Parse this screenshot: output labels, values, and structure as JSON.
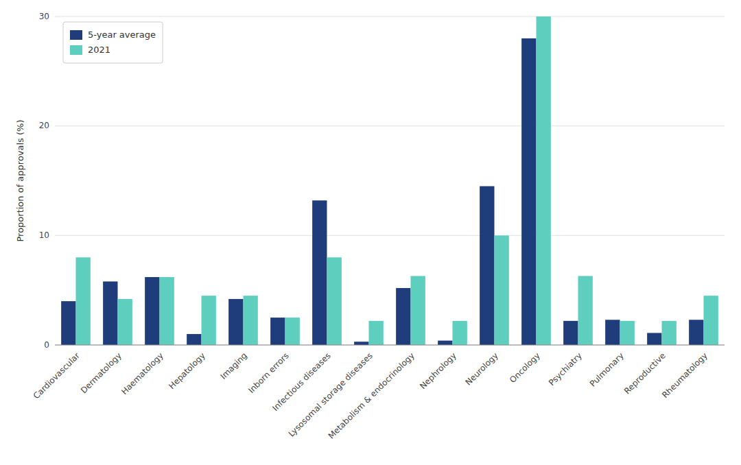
{
  "chart_data": {
    "type": "bar",
    "categories": [
      "Cardiovascular",
      "Dermatology",
      "Haematology",
      "Hepatology",
      "Imaging",
      "Inborn errors",
      "Infectious diseases",
      "Lysosomal storage diseases",
      "Metabolism & endocrinology",
      "Nephrology",
      "Neurology",
      "Oncology",
      "Psychiatry",
      "Pulmonary",
      "Reproductive",
      "Rheumatology"
    ],
    "series": [
      {
        "name": "5-year average",
        "color": "#1f3d7a",
        "values": [
          4.0,
          5.8,
          6.2,
          1.0,
          4.2,
          2.5,
          13.2,
          0.3,
          5.2,
          0.4,
          14.5,
          28.0,
          2.2,
          2.3,
          1.1,
          2.3
        ]
      },
      {
        "name": "2021",
        "color": "#5ecfbf",
        "values": [
          8.0,
          4.2,
          6.2,
          4.5,
          4.5,
          2.5,
          8.0,
          2.2,
          6.3,
          2.2,
          10.0,
          30.0,
          6.3,
          2.2,
          2.2,
          4.5
        ]
      }
    ],
    "ylabel": "Proportion of approvals (%)",
    "ylim": [
      0,
      30
    ],
    "yticks": [
      0,
      10,
      20,
      30
    ],
    "grid": true,
    "legend": "upper-left"
  }
}
